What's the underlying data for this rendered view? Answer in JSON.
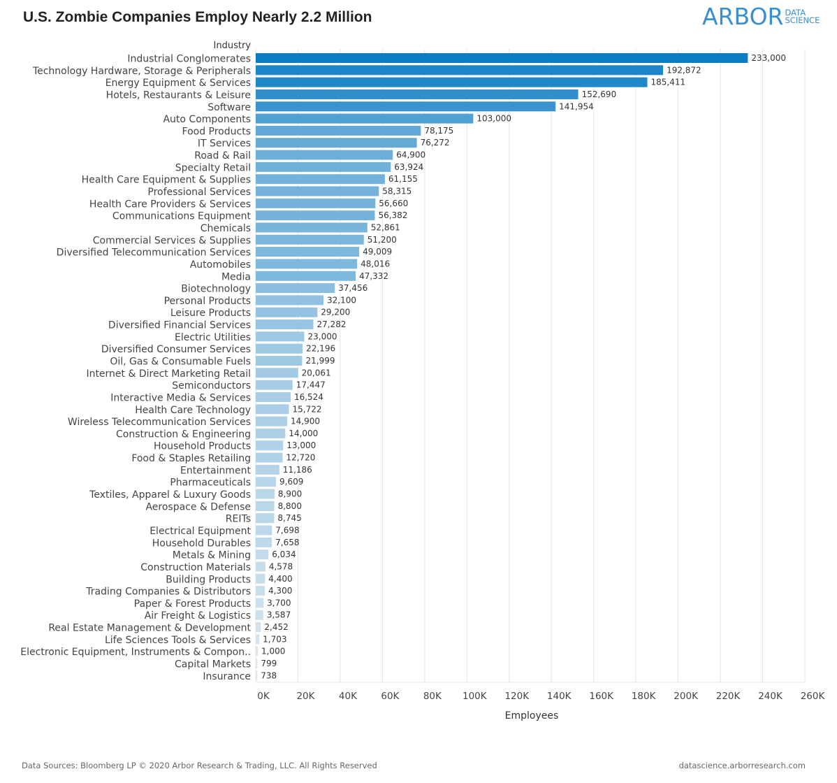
{
  "header": {
    "title": "U.S. Zombie Companies Employ Nearly 2.2 Million",
    "logo_main": "ARBOR",
    "logo_sub_1": "DATA",
    "logo_sub_2": "SCIENCE"
  },
  "footer": {
    "source": "Data Sources: Bloomberg LP © 2020 Arbor Research & Trading, LLC. All Rights Reserved",
    "url": "datascience.arborresearch.com"
  },
  "colors": {
    "bar_dark": "#0a7cc4",
    "bar_light": "#eef1f4",
    "grid": "#e6e6e6",
    "logo": "#3a8fcc"
  },
  "chart_data": {
    "type": "bar",
    "orientation": "horizontal",
    "title": "U.S. Zombie Companies Employ Nearly 2.2 Million",
    "ylabel": "Industry",
    "xlabel": "Employees",
    "xlim": [
      0,
      260000
    ],
    "x_ticks": [
      "0K",
      "20K",
      "40K",
      "60K",
      "80K",
      "100K",
      "120K",
      "140K",
      "160K",
      "180K",
      "200K",
      "220K",
      "240K",
      "260K"
    ],
    "grid": "vertical",
    "categories": [
      "Industrial Conglomerates",
      "Technology Hardware, Storage & Peripherals",
      "Energy Equipment & Services",
      "Hotels, Restaurants & Leisure",
      "Software",
      "Auto Components",
      "Food Products",
      "IT Services",
      "Road & Rail",
      "Specialty Retail",
      "Health Care Equipment & Supplies",
      "Professional Services",
      "Health Care Providers & Services",
      "Communications Equipment",
      "Chemicals",
      "Commercial Services & Supplies",
      "Diversified Telecommunication Services",
      "Automobiles",
      "Media",
      "Biotechnology",
      "Personal Products",
      "Leisure Products",
      "Diversified Financial Services",
      "Electric Utilities",
      "Diversified Consumer Services",
      "Oil, Gas & Consumable Fuels",
      "Internet & Direct Marketing Retail",
      "Semiconductors",
      "Interactive Media & Services",
      "Health Care Technology",
      "Wireless Telecommunication Services",
      "Construction & Engineering",
      "Household Products",
      "Food & Staples Retailing",
      "Entertainment",
      "Pharmaceuticals",
      "Textiles, Apparel & Luxury Goods",
      "Aerospace & Defense",
      "REITs",
      "Electrical Equipment",
      "Household Durables",
      "Metals & Mining",
      "Construction Materials",
      "Building Products",
      "Trading Companies & Distributors",
      "Paper & Forest Products",
      "Air Freight & Logistics",
      "Real Estate Management & Development",
      "Life Sciences Tools & Services",
      "Electronic Equipment, Instruments & Compon..",
      "Capital Markets",
      "Insurance"
    ],
    "values": [
      233000,
      192872,
      185411,
      152690,
      141954,
      103000,
      78175,
      76272,
      64900,
      63924,
      61155,
      58315,
      56660,
      56382,
      52861,
      51200,
      49009,
      48016,
      47332,
      37456,
      32100,
      29200,
      27282,
      23000,
      22196,
      21999,
      20061,
      17447,
      16524,
      15722,
      14900,
      14000,
      13000,
      12720,
      11186,
      9609,
      8900,
      8800,
      8745,
      7698,
      7658,
      6034,
      4578,
      4400,
      4300,
      3700,
      3587,
      2452,
      1703,
      1000,
      799,
      738
    ],
    "value_labels": [
      "233,000",
      "192,872",
      "185,411",
      "152,690",
      "141,954",
      "103,000",
      "78,175",
      "76,272",
      "64,900",
      "63,924",
      "61,155",
      "58,315",
      "56,660",
      "56,382",
      "52,861",
      "51,200",
      "49,009",
      "48,016",
      "47,332",
      "37,456",
      "32,100",
      "29,200",
      "27,282",
      "23,000",
      "22,196",
      "21,999",
      "20,061",
      "17,447",
      "16,524",
      "15,722",
      "14,900",
      "14,000",
      "13,000",
      "12,720",
      "11,186",
      "9,609",
      "8,900",
      "8,800",
      "8,745",
      "7,698",
      "7,658",
      "6,034",
      "4,578",
      "4,400",
      "4,300",
      "3,700",
      "3,587",
      "2,452",
      "1,703",
      "1,000",
      "799",
      "738"
    ]
  }
}
